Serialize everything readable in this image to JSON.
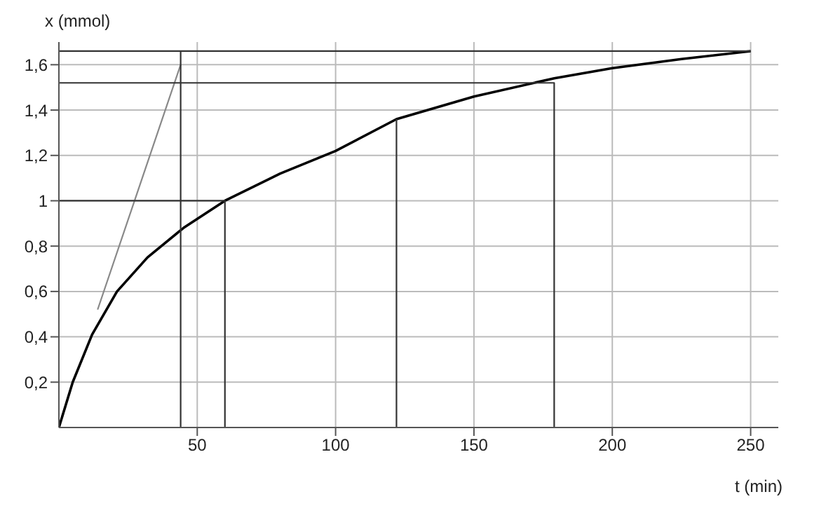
{
  "chart_data": {
    "type": "line",
    "xlabel": "t (min)",
    "ylabel": "x (mmol)",
    "xlim": [
      0,
      260
    ],
    "ylim": [
      0,
      1.7
    ],
    "xticks": [
      50,
      100,
      150,
      200,
      250
    ],
    "yticks": [
      {
        "value": 0.2,
        "label": "0,2"
      },
      {
        "value": 0.4,
        "label": "0,4"
      },
      {
        "value": 0.6,
        "label": "0,6"
      },
      {
        "value": 0.8,
        "label": "0,8"
      },
      {
        "value": 1,
        "label": "1"
      },
      {
        "value": 1.2,
        "label": "1,2"
      },
      {
        "value": 1.4,
        "label": "1,4"
      },
      {
        "value": 1.6,
        "label": "1,6"
      }
    ],
    "grid": true,
    "marker": "none",
    "line_style": "solid",
    "series": [
      {
        "color": "#000000",
        "x": [
          0,
          5,
          12,
          21,
          32,
          45,
          60,
          80,
          100,
          122,
          150,
          179,
          200,
          225,
          250
        ],
        "values": [
          0,
          0.2,
          0.41,
          0.6,
          0.75,
          0.88,
          1.0,
          1.12,
          1.22,
          1.36,
          1.46,
          1.54,
          1.585,
          1.625,
          1.66
        ]
      },
      {
        "color": "#888888",
        "x": [
          14,
          44
        ],
        "values": [
          0.52,
          1.6
        ]
      },
      {
        "color": "#333333",
        "x": [
          0,
          60,
          60
        ],
        "values": [
          1,
          1,
          0
        ]
      },
      {
        "color": "#333333",
        "x": [
          0,
          179,
          179
        ],
        "values": [
          1.52,
          1.52,
          0
        ]
      },
      {
        "color": "#333333",
        "x": [
          122,
          122
        ],
        "values": [
          0,
          1.36
        ]
      },
      {
        "color": "#333333",
        "x": [
          44,
          44
        ],
        "values": [
          0,
          1.66
        ]
      },
      {
        "color": "#333333",
        "x": [
          0,
          250
        ],
        "values": [
          1.66,
          1.66
        ]
      }
    ]
  }
}
